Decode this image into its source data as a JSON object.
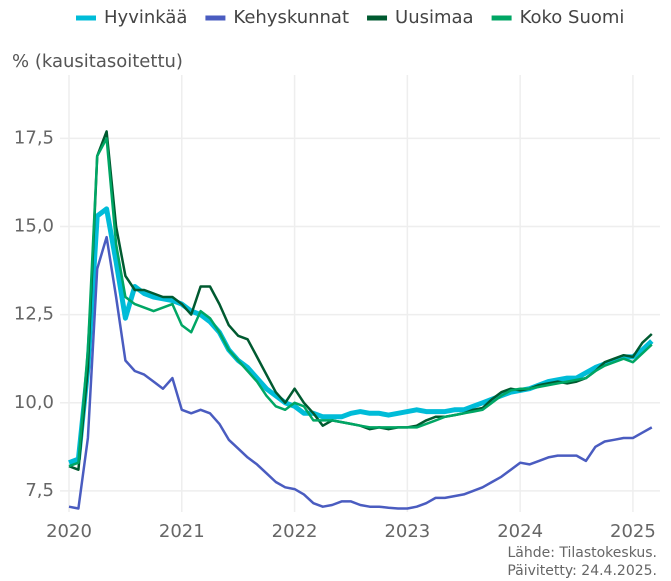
{
  "chart_data": {
    "type": "line",
    "y_label": "% (kausitasoitettu)",
    "annotations": [
      "Lähde: Tilastokeskus.",
      "Päivitetty: 24.4.2025."
    ],
    "x": [
      2020,
      2020.083,
      2020.167,
      2020.25,
      2020.333,
      2020.417,
      2020.5,
      2020.583,
      2020.667,
      2020.75,
      2020.833,
      2020.917,
      2021,
      2021.083,
      2021.167,
      2021.25,
      2021.333,
      2021.417,
      2021.5,
      2021.583,
      2021.667,
      2021.75,
      2021.833,
      2021.917,
      2022,
      2022.083,
      2022.167,
      2022.25,
      2022.333,
      2022.417,
      2022.5,
      2022.583,
      2022.667,
      2022.75,
      2022.833,
      2022.917,
      2023,
      2023.083,
      2023.167,
      2023.25,
      2023.333,
      2023.417,
      2023.5,
      2023.583,
      2023.667,
      2023.75,
      2023.833,
      2023.917,
      2024,
      2024.083,
      2024.167,
      2024.25,
      2024.333,
      2024.417,
      2024.5,
      2024.583,
      2024.667,
      2024.75,
      2024.833,
      2024.917,
      2025,
      2025.083,
      2025.167
    ],
    "series": [
      {
        "name": "Hyvinkää",
        "color": "#00bcd8",
        "width": 5,
        "values": [
          8.3,
          8.4,
          11.0,
          15.3,
          15.5,
          14.0,
          12.4,
          13.3,
          13.1,
          13.0,
          12.95,
          12.9,
          12.8,
          12.6,
          12.5,
          12.3,
          12.0,
          11.5,
          11.2,
          11.0,
          10.7,
          10.4,
          10.2,
          10.0,
          9.9,
          9.7,
          9.7,
          9.6,
          9.6,
          9.6,
          9.7,
          9.75,
          9.7,
          9.7,
          9.65,
          9.7,
          9.75,
          9.8,
          9.75,
          9.75,
          9.75,
          9.8,
          9.8,
          9.9,
          10.0,
          10.1,
          10.2,
          10.3,
          10.35,
          10.4,
          10.5,
          10.6,
          10.65,
          10.7,
          10.7,
          10.85,
          11.0,
          11.1,
          11.2,
          11.3,
          11.3,
          11.5,
          11.75
        ]
      },
      {
        "name": "Kehyskunnat",
        "color": "#4a5cc0",
        "width": 2.5,
        "values": [
          7.05,
          7.0,
          9.0,
          13.8,
          14.7,
          13.0,
          11.2,
          10.9,
          10.8,
          10.6,
          10.4,
          10.7,
          9.8,
          9.7,
          9.8,
          9.7,
          9.4,
          8.95,
          8.7,
          8.45,
          8.25,
          8.0,
          7.75,
          7.6,
          7.55,
          7.4,
          7.15,
          7.05,
          7.1,
          7.2,
          7.2,
          7.1,
          7.05,
          7.05,
          7.02,
          7.0,
          7.0,
          7.05,
          7.15,
          7.3,
          7.3,
          7.35,
          7.4,
          7.5,
          7.6,
          7.75,
          7.9,
          8.1,
          8.3,
          8.25,
          8.35,
          8.45,
          8.5,
          8.5,
          8.5,
          8.35,
          8.75,
          8.9,
          8.95,
          9.0,
          9.0,
          9.15,
          9.3
        ]
      },
      {
        "name": "Uusimaa",
        "color": "#005a30",
        "width": 2.5,
        "values": [
          8.2,
          8.1,
          11.0,
          17.0,
          17.7,
          15.0,
          13.6,
          13.2,
          13.2,
          13.1,
          13.0,
          13.0,
          12.8,
          12.5,
          13.3,
          13.3,
          12.8,
          12.2,
          11.9,
          11.8,
          11.3,
          10.8,
          10.3,
          10.0,
          10.4,
          10.0,
          9.7,
          9.35,
          9.5,
          9.45,
          9.4,
          9.35,
          9.25,
          9.3,
          9.25,
          9.3,
          9.3,
          9.35,
          9.5,
          9.6,
          9.6,
          9.65,
          9.7,
          9.8,
          9.85,
          10.1,
          10.3,
          10.4,
          10.35,
          10.4,
          10.5,
          10.55,
          10.6,
          10.55,
          10.6,
          10.7,
          10.9,
          11.15,
          11.25,
          11.35,
          11.3,
          11.7,
          11.95
        ]
      },
      {
        "name": "Koko Suomi",
        "color": "#00a664",
        "width": 2.5,
        "values": [
          8.2,
          8.3,
          11.5,
          17.0,
          17.5,
          14.5,
          13.0,
          12.8,
          12.7,
          12.6,
          12.7,
          12.8,
          12.2,
          12.0,
          12.6,
          12.4,
          12.0,
          11.5,
          11.2,
          10.9,
          10.6,
          10.2,
          9.9,
          9.8,
          10.0,
          9.9,
          9.5,
          9.5,
          9.5,
          9.45,
          9.4,
          9.35,
          9.3,
          9.3,
          9.3,
          9.3,
          9.3,
          9.3,
          9.4,
          9.5,
          9.6,
          9.65,
          9.7,
          9.75,
          9.8,
          10.0,
          10.2,
          10.35,
          10.4,
          10.4,
          10.45,
          10.5,
          10.55,
          10.6,
          10.65,
          10.7,
          10.9,
          11.05,
          11.15,
          11.25,
          11.15,
          11.4,
          11.65
        ]
      }
    ],
    "xlim": [
      2019.92,
      2025.24
    ],
    "xticks": [
      2020,
      2021,
      2022,
      2023,
      2024,
      2025
    ],
    "ylim": [
      6.9,
      19.3
    ],
    "yticks": [
      {
        "value": 7.5,
        "label": "7,5"
      },
      {
        "value": 10,
        "label": "10,0"
      },
      {
        "value": 12.5,
        "label": "12,5"
      },
      {
        "value": 15,
        "label": "15,0"
      },
      {
        "value": 17.5,
        "label": "17,5"
      }
    ],
    "grid": true,
    "legend": "top"
  }
}
